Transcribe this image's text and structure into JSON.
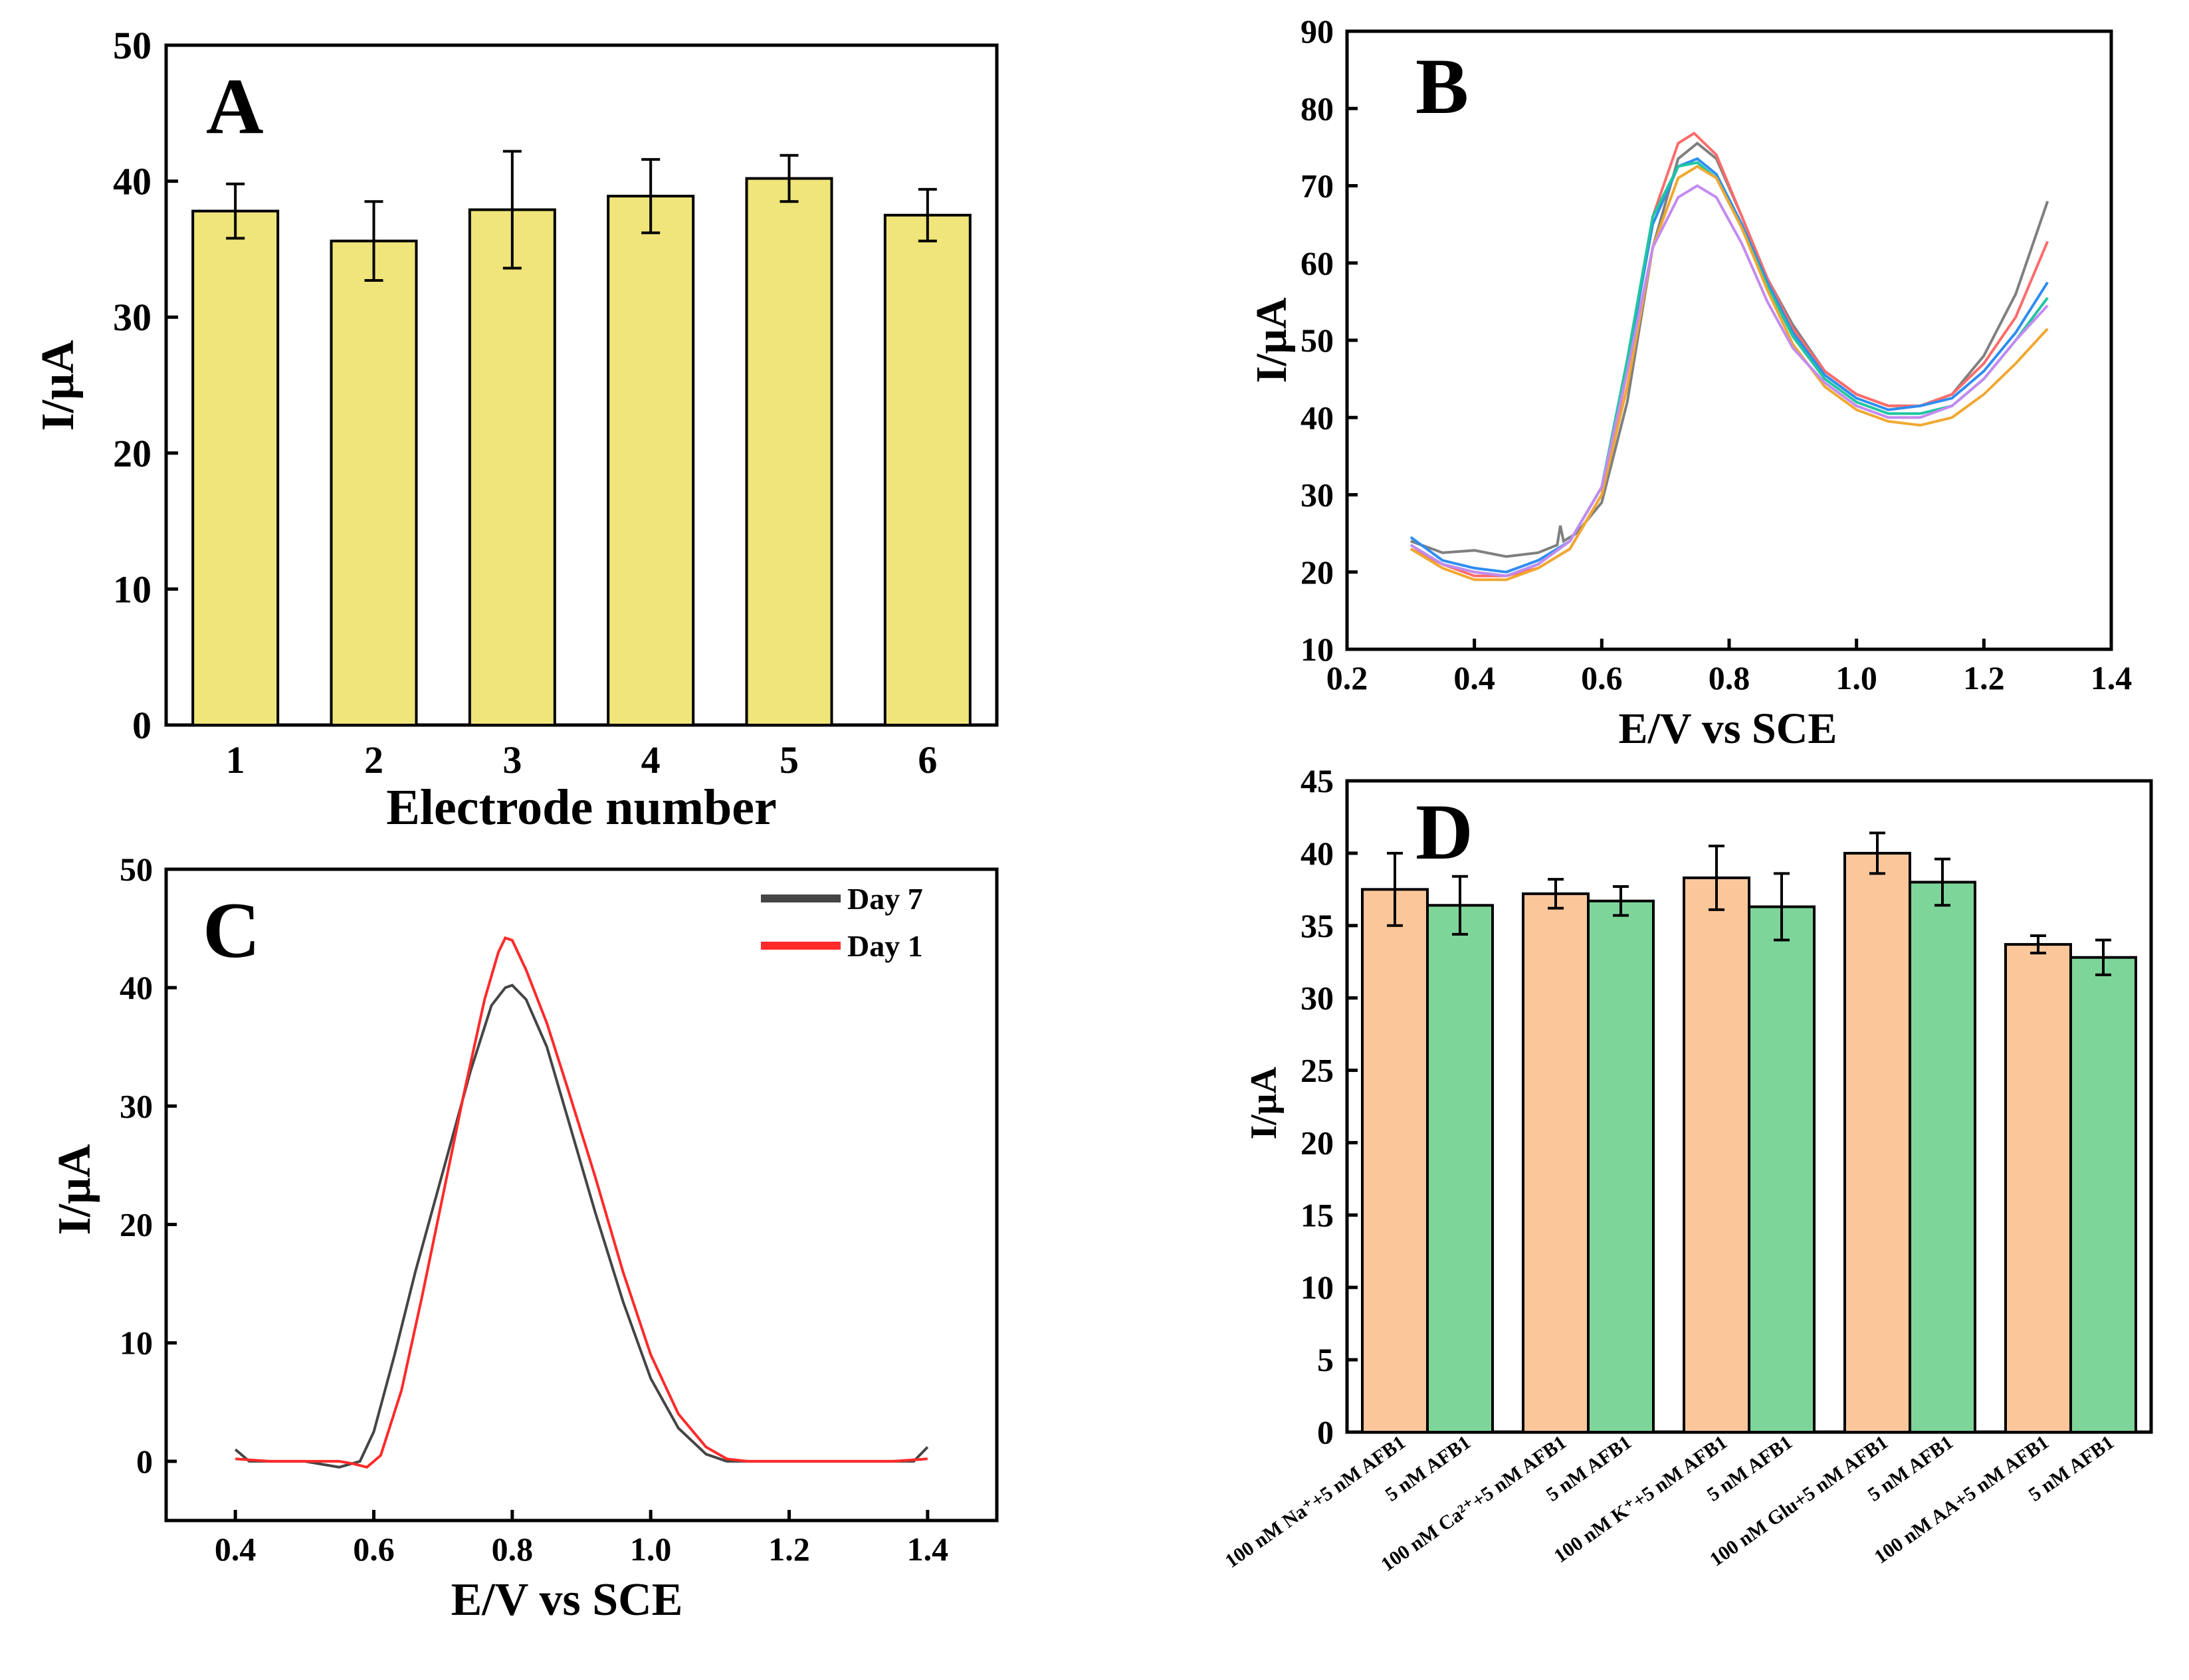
{
  "colors": {
    "bar_yellow": "#f0e57a",
    "bar_orange": "#fbc79a",
    "bar_green": "#7ed59a",
    "day7": "#454545",
    "day1": "#ff2a2a",
    "b_series": [
      "#7f7f7f",
      "#ff6b6b",
      "#2e8df0",
      "#20c6a0",
      "#f0a830",
      "#c48af0"
    ]
  },
  "chart_data": [
    {
      "id": "A",
      "type": "bar",
      "panel_letter": "A",
      "categories": [
        "1",
        "2",
        "3",
        "4",
        "5",
        "6"
      ],
      "values": [
        37.8,
        35.6,
        37.9,
        38.9,
        40.2,
        37.5
      ],
      "errors": [
        2.0,
        2.9,
        4.3,
        2.7,
        1.7,
        1.9
      ],
      "xlabel": "Electrode number",
      "ylabel": "I/μA",
      "ylim": [
        0,
        50
      ],
      "yticks": [
        "0",
        "10",
        "20",
        "30",
        "40",
        "50"
      ],
      "grid": false
    },
    {
      "id": "B",
      "type": "line",
      "panel_letter": "B",
      "xlabel": "E/V vs SCE",
      "ylabel": "I/μA",
      "xlim": [
        0.2,
        1.4
      ],
      "ylim": [
        10,
        90
      ],
      "xticks": [
        "0.2",
        "0.4",
        "0.6",
        "0.8",
        "1.0",
        "1.2",
        "1.4"
      ],
      "yticks": [
        "10",
        "20",
        "30",
        "40",
        "50",
        "60",
        "70",
        "80",
        "90"
      ],
      "grid": false,
      "series": [
        {
          "name": "gray",
          "x": [
            0.3,
            0.35,
            0.4,
            0.45,
            0.5,
            0.53,
            0.535,
            0.54,
            0.56,
            0.6,
            0.64,
            0.68,
            0.72,
            0.75,
            0.78,
            0.82,
            0.86,
            0.9,
            0.95,
            1.0,
            1.05,
            1.1,
            1.15,
            1.2,
            1.25,
            1.3
          ],
          "y": [
            24.0,
            22.5,
            22.8,
            22.0,
            22.5,
            23.5,
            26.0,
            24.0,
            25.0,
            29.0,
            42.0,
            62.0,
            73.5,
            75.5,
            73.5,
            66.0,
            58.0,
            52.0,
            46.0,
            43.0,
            41.5,
            41.5,
            43.0,
            48.0,
            56.0,
            68.0
          ]
        },
        {
          "name": "red",
          "x": [
            0.3,
            0.35,
            0.4,
            0.45,
            0.5,
            0.55,
            0.6,
            0.64,
            0.68,
            0.72,
            0.745,
            0.78,
            0.82,
            0.86,
            0.9,
            0.95,
            1.0,
            1.05,
            1.1,
            1.15,
            1.2,
            1.25,
            1.3
          ],
          "y": [
            23.0,
            21.0,
            19.5,
            19.5,
            20.5,
            23.0,
            30.0,
            46.0,
            66.0,
            75.5,
            76.8,
            74.0,
            66.0,
            58.0,
            51.5,
            46.0,
            43.0,
            41.5,
            41.5,
            43.0,
            47.0,
            53.0,
            62.8
          ]
        },
        {
          "name": "blue",
          "x": [
            0.3,
            0.35,
            0.4,
            0.45,
            0.5,
            0.55,
            0.6,
            0.64,
            0.68,
            0.72,
            0.75,
            0.78,
            0.82,
            0.86,
            0.9,
            0.95,
            1.0,
            1.05,
            1.1,
            1.15,
            1.2,
            1.25,
            1.3
          ],
          "y": [
            24.5,
            21.5,
            20.5,
            20.0,
            21.5,
            24.0,
            31.0,
            47.0,
            65.0,
            72.5,
            73.5,
            71.5,
            65.0,
            57.5,
            51.0,
            45.5,
            42.5,
            41.0,
            41.5,
            42.5,
            46.0,
            51.0,
            57.5
          ]
        },
        {
          "name": "teal",
          "x": [
            0.3,
            0.35,
            0.4,
            0.45,
            0.5,
            0.55,
            0.6,
            0.64,
            0.68,
            0.72,
            0.75,
            0.78,
            0.82,
            0.86,
            0.9,
            0.95,
            1.0,
            1.05,
            1.1,
            1.15,
            1.2,
            1.25,
            1.3
          ],
          "y": [
            23.5,
            21.0,
            20.0,
            19.5,
            21.0,
            24.0,
            31.0,
            47.5,
            66.0,
            72.5,
            73.0,
            71.0,
            64.5,
            57.0,
            50.5,
            45.0,
            42.0,
            40.5,
            40.5,
            41.5,
            45.0,
            50.0,
            55.5
          ]
        },
        {
          "name": "orange",
          "x": [
            0.3,
            0.35,
            0.4,
            0.45,
            0.5,
            0.55,
            0.6,
            0.64,
            0.68,
            0.72,
            0.75,
            0.78,
            0.82,
            0.86,
            0.9,
            0.95,
            1.0,
            1.05,
            1.1,
            1.15,
            1.2,
            1.25,
            1.3
          ],
          "y": [
            23.0,
            20.5,
            19.0,
            19.0,
            20.5,
            23.0,
            30.0,
            44.0,
            62.0,
            71.0,
            72.5,
            71.0,
            64.5,
            56.5,
            49.5,
            44.0,
            41.0,
            39.5,
            39.0,
            40.0,
            43.0,
            47.0,
            51.5
          ]
        },
        {
          "name": "violet",
          "x": [
            0.3,
            0.35,
            0.4,
            0.45,
            0.5,
            0.55,
            0.6,
            0.64,
            0.68,
            0.72,
            0.75,
            0.78,
            0.82,
            0.86,
            0.9,
            0.95,
            1.0,
            1.05,
            1.1,
            1.15,
            1.2,
            1.25,
            1.3
          ],
          "y": [
            23.5,
            21.0,
            20.0,
            19.5,
            21.0,
            24.0,
            31.0,
            46.0,
            62.0,
            68.5,
            70.0,
            68.5,
            62.5,
            55.0,
            49.0,
            44.5,
            41.5,
            40.0,
            40.0,
            41.5,
            45.0,
            50.0,
            54.5
          ]
        }
      ]
    },
    {
      "id": "C",
      "type": "line",
      "panel_letter": "C",
      "xlabel": "E/V vs SCE",
      "ylabel": "I/μA",
      "xlim": [
        0.3,
        1.5
      ],
      "ylim": [
        -5,
        50
      ],
      "xticks": [
        "0.4",
        "0.6",
        "0.8",
        "1.0",
        "1.2",
        "1.4"
      ],
      "xtick_values": [
        0.4,
        0.6,
        0.8,
        1.0,
        1.2,
        1.4
      ],
      "yticks": [
        "0",
        "10",
        "20",
        "30",
        "40",
        "50"
      ],
      "ytick_values": [
        0,
        10,
        20,
        30,
        40,
        50
      ],
      "legend_position": "top-right",
      "grid": false,
      "series": [
        {
          "name": "Day 7",
          "x": [
            0.4,
            0.42,
            0.45,
            0.5,
            0.55,
            0.58,
            0.6,
            0.63,
            0.66,
            0.7,
            0.74,
            0.77,
            0.79,
            0.8,
            0.82,
            0.85,
            0.88,
            0.92,
            0.96,
            1.0,
            1.04,
            1.08,
            1.11,
            1.13,
            1.16,
            1.2,
            1.25,
            1.3,
            1.35,
            1.38,
            1.4
          ],
          "y": [
            1.0,
            0.0,
            0.0,
            0.0,
            -0.5,
            0.0,
            2.5,
            9.0,
            16.0,
            24.5,
            33.0,
            38.5,
            40.0,
            40.2,
            39.0,
            35.0,
            29.0,
            21.0,
            13.5,
            7.0,
            2.8,
            0.6,
            0.0,
            0.0,
            0.0,
            0.0,
            0.0,
            0.0,
            0.0,
            0.0,
            1.2
          ]
        },
        {
          "name": "Day 1",
          "x": [
            0.4,
            0.45,
            0.5,
            0.55,
            0.57,
            0.59,
            0.61,
            0.64,
            0.67,
            0.7,
            0.73,
            0.76,
            0.78,
            0.79,
            0.8,
            0.82,
            0.85,
            0.88,
            0.92,
            0.96,
            1.0,
            1.04,
            1.08,
            1.11,
            1.14,
            1.16,
            1.2,
            1.25,
            1.3,
            1.35,
            1.4
          ],
          "y": [
            0.2,
            0.0,
            0.0,
            0.0,
            -0.2,
            -0.5,
            0.5,
            6.0,
            14.0,
            22.5,
            31.0,
            39.0,
            43.0,
            44.2,
            44.0,
            41.5,
            37.0,
            31.5,
            24.0,
            16.0,
            9.0,
            4.0,
            1.2,
            0.2,
            0.0,
            0.0,
            0.0,
            0.0,
            0.0,
            0.0,
            0.2
          ]
        }
      ]
    },
    {
      "id": "D",
      "type": "bar",
      "panel_letter": "D",
      "ylabel": "I/μA",
      "ylim": [
        0,
        45
      ],
      "yticks": [
        "0",
        "5",
        "10",
        "15",
        "20",
        "25",
        "30",
        "35",
        "40",
        "45"
      ],
      "grid": false,
      "categories": [
        "100 nM Na⁺+5 nM AFB1",
        "5 nM AFB1",
        "100 nM Ca²⁺+5 nM AFB1",
        "5 nM AFB1",
        "100 nM K⁺+5 nM AFB1",
        "5 nM AFB1",
        "100 nM Glu+5 nM AFB1",
        "5 nM AFB1",
        "100 nM AA+5 nM AFB1",
        "5 nM AFB1"
      ],
      "values": [
        37.5,
        36.4,
        37.2,
        36.7,
        38.3,
        36.3,
        40.0,
        38.0,
        33.7,
        32.8
      ],
      "errors": [
        2.5,
        2.0,
        1.0,
        1.0,
        2.2,
        2.3,
        1.4,
        1.6,
        0.6,
        1.2
      ],
      "bar_colors": [
        "orange",
        "green",
        "orange",
        "green",
        "orange",
        "green",
        "orange",
        "green",
        "orange",
        "green"
      ]
    }
  ]
}
